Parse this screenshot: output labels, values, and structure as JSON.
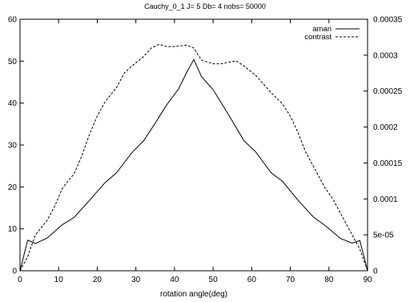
{
  "chart_data": {
    "type": "line",
    "title": "Cauchy_0_1 J= 5  Db= 4  nobs= 50000",
    "xlabel": "rotation angle(deg)",
    "ylabel": "",
    "y2label": "",
    "xlim": [
      0,
      90
    ],
    "ylim": [
      0,
      60
    ],
    "y2lim": [
      0,
      0.00035
    ],
    "xticks": [
      "0",
      "10",
      "20",
      "30",
      "40",
      "50",
      "60",
      "70",
      "80",
      "90"
    ],
    "yticks": [
      "0",
      "10",
      "20",
      "30",
      "40",
      "50",
      "60"
    ],
    "y2ticks": [
      "0",
      "5e-05",
      "0.0001",
      "0.00015",
      "0.0002",
      "0.00025",
      "0.0003",
      "0.00035"
    ],
    "grid": false,
    "legend_position": "top-right",
    "series": [
      {
        "name": "amari",
        "axis": "left",
        "style": "solid",
        "color": "#000000",
        "x": [
          0,
          2,
          4,
          7,
          11,
          14,
          18,
          22,
          25,
          29,
          32,
          35,
          38,
          41,
          43,
          45,
          47,
          50,
          54,
          58,
          61,
          65,
          68,
          72,
          76,
          79,
          83,
          86,
          88,
          90
        ],
        "y": [
          0,
          7.3,
          6.5,
          7.8,
          11,
          12.7,
          16.8,
          21,
          23.4,
          28.2,
          31,
          35.2,
          39.6,
          43.3,
          47,
          50.4,
          46.3,
          43.2,
          37.2,
          31,
          28.4,
          23.4,
          21.3,
          16.8,
          12.8,
          10.8,
          7.7,
          6.6,
          7.2,
          0
        ]
      },
      {
        "name": "contrast",
        "axis": "right",
        "style": "dashed",
        "color": "#000000",
        "x": [
          0,
          2,
          4,
          7,
          9,
          11,
          14,
          16,
          18,
          20,
          22,
          25,
          27,
          29,
          32,
          34,
          36,
          38,
          40,
          43,
          45,
          47,
          50,
          52,
          54,
          56,
          58,
          61,
          63,
          65,
          68,
          70,
          72,
          74,
          76,
          79,
          81,
          83,
          85,
          88,
          90
        ],
        "y": [
          0,
          2e-05,
          5e-05,
          7e-05,
          9e-05,
          0.000115,
          0.000135,
          0.00016,
          0.00019,
          0.000215,
          0.000235,
          0.000255,
          0.000275,
          0.000285,
          0.000298,
          0.00031,
          0.000315,
          0.000312,
          0.000312,
          0.000314,
          0.00031,
          0.000293,
          0.000288,
          0.000288,
          0.00029,
          0.000292,
          0.000285,
          0.000272,
          0.00026,
          0.000248,
          0.000232,
          0.000215,
          0.000192,
          0.000165,
          0.000145,
          0.000115,
          0.0001,
          8e-05,
          6e-05,
          3e-05,
          0
        ]
      }
    ]
  }
}
